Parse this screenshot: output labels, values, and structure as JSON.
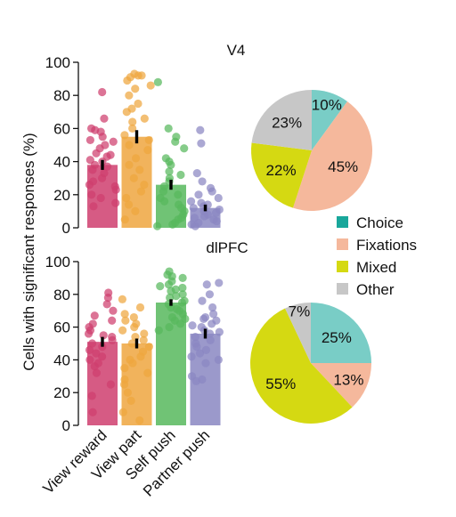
{
  "figure": {
    "ylabel": "Cells with significant responses  (%)",
    "categories": [
      "View reward",
      "View part",
      "Self push",
      "Partner push"
    ],
    "colors": {
      "view_reward": "#cf3e6e",
      "view_part": "#efa63f",
      "self_push": "#57b95d",
      "partner_push": "#8a87c2"
    }
  },
  "chart_data": [
    {
      "type": "bar",
      "title": "V4",
      "categories": [
        "View reward",
        "View part",
        "Self push",
        "Partner push"
      ],
      "values": [
        38,
        55,
        26,
        12
      ],
      "errors": [
        3,
        4,
        3,
        2
      ],
      "points": [
        [
          82,
          66,
          60,
          59,
          58,
          55,
          53,
          52,
          50,
          48,
          45,
          44,
          43,
          41,
          40,
          38,
          37,
          35,
          33,
          30,
          28,
          26,
          25,
          23,
          20,
          18,
          15,
          13
        ],
        [
          93,
          92,
          92,
          91,
          89,
          86,
          84,
          80,
          75,
          72,
          70,
          66,
          64,
          60,
          56,
          53,
          50,
          47,
          42,
          38,
          35,
          30,
          26,
          22,
          18,
          14,
          10,
          5
        ],
        [
          88,
          60,
          55,
          52,
          48,
          42,
          40,
          38,
          34,
          32,
          30,
          28,
          25,
          22,
          20,
          18,
          16,
          14,
          12,
          10,
          8,
          6,
          5,
          3,
          2,
          1
        ],
        [
          59,
          51,
          33,
          28,
          24,
          22,
          20,
          18,
          16,
          15,
          14,
          13,
          12,
          11,
          10,
          9,
          8,
          7,
          6,
          5,
          4,
          3,
          2,
          1
        ]
      ],
      "ylim": [
        0,
        100
      ],
      "yticks": [
        0,
        20,
        40,
        60,
        80,
        100
      ]
    },
    {
      "type": "bar",
      "title": "dlPFC",
      "categories": [
        "View reward",
        "View part",
        "Self push",
        "Partner push"
      ],
      "values": [
        51,
        50,
        75,
        56
      ],
      "errors": [
        3,
        3,
        2,
        3
      ],
      "points": [
        [
          81,
          78,
          74,
          70,
          67,
          64,
          62,
          60,
          58,
          56,
          55,
          54,
          52,
          50,
          48,
          46,
          44,
          42,
          40,
          38,
          36,
          32,
          25,
          18,
          8
        ],
        [
          77,
          72,
          68,
          66,
          64,
          62,
          60,
          58,
          56,
          54,
          52,
          50,
          48,
          45,
          42,
          40,
          38,
          35,
          32,
          28,
          25,
          20,
          15,
          8,
          3
        ],
        [
          94,
          92,
          91,
          90,
          88,
          86,
          85,
          84,
          83,
          82,
          80,
          79,
          78,
          76,
          75,
          74,
          72,
          71,
          70,
          68,
          66,
          65,
          64,
          62,
          60,
          58
        ],
        [
          87,
          86,
          80,
          76,
          72,
          68,
          66,
          65,
          64,
          62,
          61,
          60,
          58,
          57,
          56,
          54,
          52,
          50,
          48,
          46,
          44,
          42,
          40,
          38,
          30,
          28,
          27
        ]
      ],
      "ylim": [
        0,
        100
      ],
      "yticks": [
        0,
        20,
        40,
        60,
        80,
        100
      ]
    },
    {
      "type": "pie",
      "title": "",
      "labels": [
        "Choice",
        "Fixations",
        "Mixed",
        "Other"
      ],
      "values": [
        10,
        45,
        22,
        23
      ],
      "value_labels": [
        "10%",
        "45%",
        "22%",
        "23%"
      ],
      "colors": [
        "#79cdc6",
        "#f5b89c",
        "#d5d912",
        "#c7c7c7"
      ]
    },
    {
      "type": "pie",
      "title": "",
      "labels": [
        "Choice",
        "Fixations",
        "Mixed",
        "Other"
      ],
      "values": [
        25,
        13,
        55,
        7
      ],
      "value_labels": [
        "25%",
        "13%",
        "55%",
        "7%"
      ],
      "colors": [
        "#79cdc6",
        "#f5b89c",
        "#d5d912",
        "#c7c7c7"
      ]
    }
  ],
  "legend": {
    "items": [
      {
        "label": "Choice",
        "color": "#19a79b"
      },
      {
        "label": "Fixations",
        "color": "#f5b89c"
      },
      {
        "label": "Mixed",
        "color": "#d5d912"
      },
      {
        "label": "Other",
        "color": "#c7c7c7"
      }
    ]
  }
}
